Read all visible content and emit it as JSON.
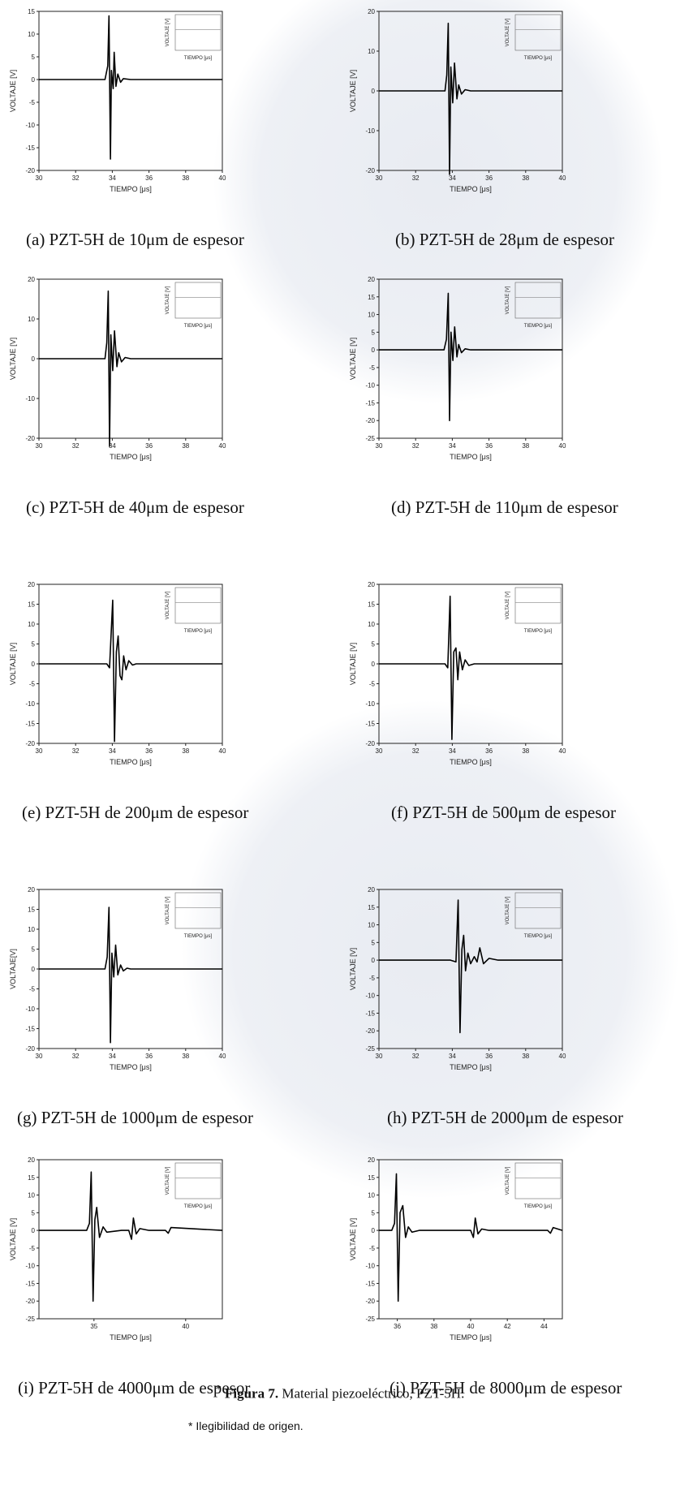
{
  "figure": {
    "marker": "*",
    "label": "Figura 7.",
    "text": " Material piezoeléctrico, PZT-5H.",
    "note": "* Ilegibilidad de origen."
  },
  "panels": [
    {
      "caption": "(a) PZT-5H de 10μm de espesor",
      "xlabel": "TIEMPO [μs]",
      "ylabel": "VOLTAJE [V]",
      "inset_xlabel": "TIEMPO [μs]",
      "inset_ylabel": "VOLTAJE [V]"
    },
    {
      "caption": "(b) PZT-5H de 28μm de espesor",
      "xlabel": "TIEMPO [μs]",
      "ylabel": "VOLTAJE [V]",
      "inset_xlabel": "TIEMPO [μs]",
      "inset_ylabel": "VOLTAJE [V]"
    },
    {
      "caption": "(c) PZT-5H de 40μm de espesor",
      "xlabel": "TIEMPO [μs]",
      "ylabel": "VOLTAJE [V]",
      "inset_xlabel": "TIEMPO [μs]",
      "inset_ylabel": "VOLTAJE [V]"
    },
    {
      "caption": "(d) PZT-5H de 110μm de espesor",
      "xlabel": "TIEMPO [μs]",
      "ylabel": "VOLTAJE [V]",
      "inset_xlabel": "TIEMPO [μs]",
      "inset_ylabel": "VOLTAJE [V]"
    },
    {
      "caption": "(e) PZT-5H de 200μm de espesor",
      "xlabel": "TIEMPO [μs]",
      "ylabel": "VOLTAJE [V]",
      "inset_xlabel": "TIEMPO [μs]",
      "inset_ylabel": "VOLTAJE [V]"
    },
    {
      "caption": "(f) PZT-5H de 500μm de espesor",
      "xlabel": "TIEMPO [μs]",
      "ylabel": "VOLTAJE [V]",
      "inset_xlabel": "TIEMPO [μs]",
      "inset_ylabel": "VOLTAJE [V]"
    },
    {
      "caption": "(g) PZT-5H de 1000μm de espesor",
      "xlabel": "TIEMPO [μs]",
      "ylabel": "VOLTAJE[V]",
      "inset_xlabel": "TIEMPO [μs]",
      "inset_ylabel": "VOLTAJE [V]"
    },
    {
      "caption": "(h) PZT-5H de 2000μm de espesor",
      "xlabel": "TIEMPO [μs]",
      "ylabel": "VOLTAJE [V]",
      "inset_xlabel": "TIEMPO [μs]",
      "inset_ylabel": "VOLTAJE [V]"
    },
    {
      "caption": "(i) PZT-5H de 4000μm de espesor",
      "xlabel": "TIEMPO [μs]",
      "ylabel": "VOLTAJE [V]",
      "inset_xlabel": "TIEMPO [μs]",
      "inset_ylabel": "VOLTAJE [V]"
    },
    {
      "caption": "(j) PZT-5H de 8000μm de espesor",
      "xlabel": "TIEMPO [μs]",
      "ylabel": "VOLTAJE [V]",
      "inset_xlabel": "TIEMPO [μs]",
      "inset_ylabel": "VOLTAJE [V]"
    }
  ],
  "chart_data": [
    {
      "type": "line",
      "xlim": [
        30,
        40
      ],
      "ylim": [
        -20,
        15
      ],
      "xticks": [
        30,
        32,
        34,
        36,
        38,
        40
      ],
      "yticks": [
        15,
        10,
        5,
        0,
        -5,
        -10,
        -15,
        -20
      ],
      "series": [
        {
          "x": [
            30,
            33.6,
            33.75,
            33.82,
            33.9,
            33.95,
            34.05,
            34.1,
            34.2,
            34.3,
            34.45,
            34.6,
            35,
            40
          ],
          "y": [
            0,
            0,
            3,
            14,
            -17.5,
            2,
            -2,
            6,
            -1.5,
            1.2,
            -0.6,
            0.2,
            0,
            0
          ]
        }
      ]
    },
    {
      "type": "line",
      "xlim": [
        30,
        40
      ],
      "ylim": [
        -20,
        20
      ],
      "xticks": [
        30,
        32,
        34,
        36,
        38,
        40
      ],
      "yticks": [
        20,
        10,
        0,
        -10,
        -20
      ],
      "series": [
        {
          "x": [
            30,
            33.6,
            33.7,
            33.78,
            33.85,
            33.92,
            34.02,
            34.12,
            34.25,
            34.35,
            34.5,
            34.7,
            35,
            40
          ],
          "y": [
            0,
            0,
            4,
            17,
            -21,
            6,
            -3,
            7,
            -2,
            1.5,
            -0.8,
            0.3,
            0,
            0
          ]
        }
      ]
    },
    {
      "type": "line",
      "xlim": [
        30,
        40
      ],
      "ylim": [
        -20,
        20
      ],
      "xticks": [
        30,
        32,
        34,
        36,
        38,
        40
      ],
      "yticks": [
        20,
        10,
        0,
        -10,
        -20
      ],
      "series": [
        {
          "x": [
            30,
            33.6,
            33.7,
            33.78,
            33.85,
            33.92,
            34.02,
            34.12,
            34.25,
            34.35,
            34.5,
            34.7,
            35,
            40
          ],
          "y": [
            0,
            0,
            4,
            17,
            -22,
            6,
            -3,
            7,
            -2,
            1.5,
            -0.8,
            0.3,
            0,
            0
          ]
        }
      ]
    },
    {
      "type": "line",
      "xlim": [
        30,
        40
      ],
      "ylim": [
        -25,
        20
      ],
      "xticks": [
        30,
        32,
        34,
        36,
        38,
        40
      ],
      "yticks": [
        20,
        15,
        10,
        5,
        0,
        -5,
        -10,
        -15,
        -20,
        -25
      ],
      "series": [
        {
          "x": [
            30,
            33.55,
            33.68,
            33.78,
            33.85,
            33.93,
            34.03,
            34.13,
            34.25,
            34.35,
            34.5,
            34.7,
            35,
            40
          ],
          "y": [
            0,
            0,
            3,
            16,
            -20,
            5,
            -3,
            6.5,
            -2,
            1.5,
            -0.8,
            0.3,
            0,
            0
          ]
        }
      ]
    },
    {
      "type": "line",
      "xlim": [
        30,
        40
      ],
      "ylim": [
        -20,
        20
      ],
      "xticks": [
        30,
        32,
        34,
        36,
        38,
        40
      ],
      "yticks": [
        20,
        15,
        10,
        5,
        0,
        -5,
        -10,
        -15,
        -20
      ],
      "series": [
        {
          "x": [
            30,
            33.7,
            33.85,
            34.02,
            34.12,
            34.22,
            34.32,
            34.42,
            34.52,
            34.62,
            34.75,
            34.9,
            35.1,
            35.3,
            40
          ],
          "y": [
            0,
            0,
            -1,
            16,
            -19.5,
            3,
            7,
            -3,
            -4,
            2,
            -1.5,
            0.8,
            -0.3,
            0,
            0
          ]
        }
      ]
    },
    {
      "type": "line",
      "xlim": [
        30,
        40
      ],
      "ylim": [
        -20,
        20
      ],
      "xticks": [
        30,
        32,
        34,
        36,
        38,
        40
      ],
      "yticks": [
        20,
        15,
        10,
        5,
        0,
        -5,
        -10,
        -15,
        -20
      ],
      "series": [
        {
          "x": [
            30,
            33.6,
            33.75,
            33.88,
            33.98,
            34.08,
            34.2,
            34.3,
            34.4,
            34.55,
            34.7,
            34.9,
            35.2,
            40
          ],
          "y": [
            0,
            0,
            -1,
            17,
            -19,
            3,
            4,
            -4,
            3,
            -1.5,
            1,
            -0.4,
            0,
            0
          ]
        }
      ]
    },
    {
      "type": "line",
      "xlim": [
        30,
        40
      ],
      "ylim": [
        -20,
        20
      ],
      "xticks": [
        30,
        32,
        34,
        36,
        38,
        40
      ],
      "yticks": [
        20,
        15,
        10,
        5,
        0,
        -5,
        -10,
        -15,
        -20
      ],
      "series": [
        {
          "x": [
            30,
            33.6,
            33.72,
            33.82,
            33.9,
            33.98,
            34.08,
            34.18,
            34.3,
            34.45,
            34.6,
            34.8,
            35,
            40
          ],
          "y": [
            0,
            0,
            3,
            15.5,
            -18.5,
            4,
            -2,
            6,
            -1.5,
            1,
            -0.5,
            0.2,
            0,
            0
          ]
        }
      ]
    },
    {
      "type": "line",
      "xlim": [
        30,
        40
      ],
      "ylim": [
        -25,
        20
      ],
      "xticks": [
        30,
        32,
        34,
        36,
        38,
        40
      ],
      "yticks": [
        20,
        15,
        10,
        5,
        0,
        -5,
        -10,
        -15,
        -20,
        -25
      ],
      "series": [
        {
          "x": [
            30,
            33.9,
            34.2,
            34.32,
            34.42,
            34.52,
            34.62,
            34.72,
            34.85,
            35,
            35.2,
            35.35,
            35.5,
            35.7,
            36,
            36.5,
            40
          ],
          "y": [
            0,
            0,
            -0.5,
            17,
            -20.5,
            3,
            7,
            -3,
            2,
            -1,
            1,
            -0.5,
            3.5,
            -1,
            0.5,
            0,
            0
          ]
        }
      ]
    },
    {
      "type": "line",
      "xlim": [
        32,
        42
      ],
      "ylim": [
        -25,
        20
      ],
      "xticks": [
        35,
        40
      ],
      "yticks": [
        20,
        15,
        10,
        5,
        0,
        -5,
        -10,
        -15,
        -20,
        -25
      ],
      "series": [
        {
          "x": [
            32,
            34.6,
            34.75,
            34.85,
            34.95,
            35.05,
            35.15,
            35.3,
            35.5,
            35.7,
            36.5,
            36.9,
            37.05,
            37.15,
            37.3,
            37.5,
            38,
            38.9,
            39.05,
            39.2,
            42
          ],
          "y": [
            0,
            0,
            2,
            16.5,
            -20,
            3,
            6.5,
            -2,
            1,
            -0.5,
            0,
            0,
            -2.5,
            3.5,
            -1,
            0.5,
            0,
            0,
            -0.8,
            0.8,
            0
          ]
        }
      ]
    },
    {
      "type": "line",
      "xlim": [
        35,
        45
      ],
      "ylim": [
        -25,
        20
      ],
      "xticks": [
        36,
        38,
        40,
        42,
        44
      ],
      "yticks": [
        20,
        15,
        10,
        5,
        0,
        -5,
        -10,
        -15,
        -20,
        -25
      ],
      "series": [
        {
          "x": [
            35,
            35.7,
            35.85,
            35.95,
            36.05,
            36.15,
            36.3,
            36.45,
            36.6,
            36.8,
            37.2,
            40,
            40.15,
            40.25,
            40.4,
            40.6,
            41,
            44.2,
            44.35,
            44.5,
            45
          ],
          "y": [
            0,
            0,
            2,
            16,
            -20,
            5,
            7,
            -2,
            1,
            -0.5,
            0,
            0,
            -2,
            3.5,
            -1,
            0.4,
            0,
            0,
            -0.8,
            0.8,
            0
          ]
        }
      ]
    }
  ]
}
